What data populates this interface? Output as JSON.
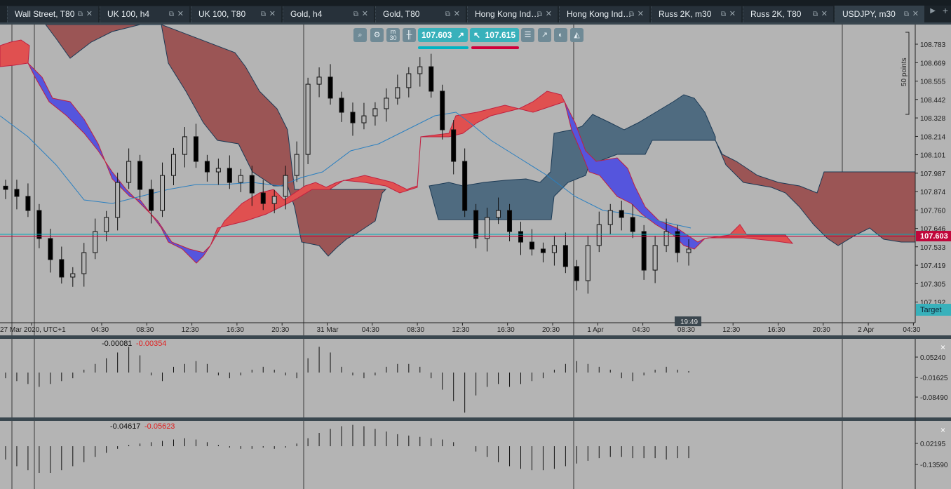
{
  "tabs": [
    {
      "label": "Wall Street, T80",
      "active": false
    },
    {
      "label": "UK 100, h4",
      "active": false
    },
    {
      "label": "UK 100, T80",
      "active": false
    },
    {
      "label": "Gold, h4",
      "active": false
    },
    {
      "label": "Gold, T80",
      "active": false
    },
    {
      "label": "Hong Kong Ind…",
      "active": false
    },
    {
      "label": "Hong Kong Ind…",
      "active": false
    },
    {
      "label": "Russ 2K, m30",
      "active": false
    },
    {
      "label": "Russ 2K, T80",
      "active": false
    },
    {
      "label": "USDJPY, m30",
      "active": true
    }
  ],
  "toolbar": {
    "zoom_icon": "magnifier-plus-icon",
    "settings_icon": "chart-settings-icon",
    "timeframe": "m",
    "timeframe_num": "30",
    "chart_type_icon": "candlestick-icon",
    "sell_price": "107.603",
    "buy_price": "107.615",
    "sell_color": "#00b4c3",
    "buy_color": "#d0003a",
    "icons": [
      "checklist-icon",
      "indicators-icon",
      "alerts-icon",
      "drawing-tools-icon"
    ]
  },
  "price_axis": {
    "ticks": [
      "108.783",
      "108.669",
      "108.555",
      "108.442",
      "108.328",
      "108.214",
      "108.101",
      "107.987",
      "107.874",
      "107.760",
      "107.646",
      "107.533",
      "107.419",
      "107.305",
      "107.192"
    ],
    "current_price": "107.603",
    "current_color": "#c0073b",
    "scale_label": "50 points",
    "target_label": "Target"
  },
  "time_axis": {
    "labels": [
      "27 Mar 2020, UTC+1",
      "04:30",
      "08:30",
      "12:30",
      "16:30",
      "20:30",
      "31 Mar",
      "04:30",
      "08:30",
      "12:30",
      "16:30",
      "20:30",
      "1 Apr",
      "04:30",
      "08:30",
      "12:30",
      "16:30",
      "20:30",
      "2 Apr",
      "04:30"
    ],
    "cursor_time": "19:49"
  },
  "chart_data": {
    "type": "candlestick",
    "ylim": [
      107.192,
      108.783
    ],
    "closes": [
      107.887,
      107.844,
      107.757,
      107.584,
      107.454,
      107.346,
      107.367,
      107.497,
      107.627,
      107.714,
      107.93,
      108.06,
      107.887,
      107.757,
      107.973,
      108.103,
      108.212,
      108.06,
      107.995,
      108.017,
      107.93,
      107.973,
      107.865,
      107.8,
      107.844,
      107.973,
      108.103,
      108.536,
      108.58,
      108.45,
      108.363,
      108.298,
      108.341,
      108.385,
      108.45,
      108.515,
      108.601,
      108.644,
      108.493,
      108.255,
      108.06,
      107.757,
      107.584,
      107.714,
      107.757,
      107.627,
      107.562,
      107.519,
      107.497,
      107.541,
      107.411,
      107.324,
      107.541,
      107.67,
      107.757,
      107.714,
      107.627,
      107.389,
      107.541,
      107.627,
      107.497,
      107.519
    ],
    "colors": {
      "up": "#b4b4b4",
      "down": "#000000",
      "cloud_bear": "#9b5555",
      "cloud_bull": "#4f6b80",
      "span_red": "#e05050",
      "span_blue": "#5555dd",
      "ma": "#2a7fc0"
    }
  },
  "indicator1": {
    "value1": "-0.00081",
    "value2": "-0.00354",
    "ticks": [
      "0.05240",
      "-0.01625",
      "-0.08490"
    ],
    "values": [
      -0.02,
      -0.03,
      -0.04,
      -0.05,
      -0.04,
      -0.03,
      -0.02,
      0.01,
      0.03,
      0.05,
      0.07,
      0.09,
      0.06,
      -0.01,
      -0.03,
      0.02,
      0.03,
      0.04,
      0.03,
      -0.01,
      -0.02,
      -0.01,
      0.01,
      0.02,
      0.01,
      -0.01,
      -0.02,
      0.05,
      0.09,
      0.07,
      0.02,
      -0.01,
      -0.02,
      -0.01,
      0.02,
      0.03,
      0.03,
      0.02,
      -0.02,
      -0.06,
      -0.1,
      -0.14,
      -0.08,
      -0.05,
      -0.04,
      -0.05,
      -0.04,
      -0.03,
      -0.02,
      0.01,
      0.03,
      0.04,
      0.03,
      0.02,
      0.01,
      -0.02,
      -0.03,
      -0.01,
      0.01,
      0.02,
      0.01,
      0.005
    ],
    "close_label": "×"
  },
  "indicator2": {
    "value1": "-0.04617",
    "value2": "-0.05623",
    "ticks": [
      "0.02195",
      "-0.13590"
    ],
    "values": [
      -0.1,
      -0.15,
      -0.18,
      -0.2,
      -0.2,
      -0.18,
      -0.15,
      -0.12,
      -0.08,
      -0.05,
      -0.02,
      0.01,
      0.02,
      0.03,
      0.04,
      0.05,
      0.06,
      0.05,
      0.03,
      0.01,
      -0.01,
      -0.02,
      -0.02,
      -0.01,
      -0.02,
      -0.01,
      0.02,
      0.06,
      0.1,
      0.13,
      0.15,
      0.16,
      0.15,
      0.13,
      0.11,
      0.09,
      0.08,
      0.07,
      0.06,
      0.05,
      0.03,
      0.0,
      -0.04,
      -0.08,
      -0.12,
      -0.15,
      -0.17,
      -0.18,
      -0.18,
      -0.17,
      -0.15,
      -0.13,
      -0.11,
      -0.09,
      -0.08,
      -0.08,
      -0.09,
      -0.09,
      -0.09,
      -0.1,
      -0.09,
      -0.09
    ],
    "close_label": "×"
  }
}
